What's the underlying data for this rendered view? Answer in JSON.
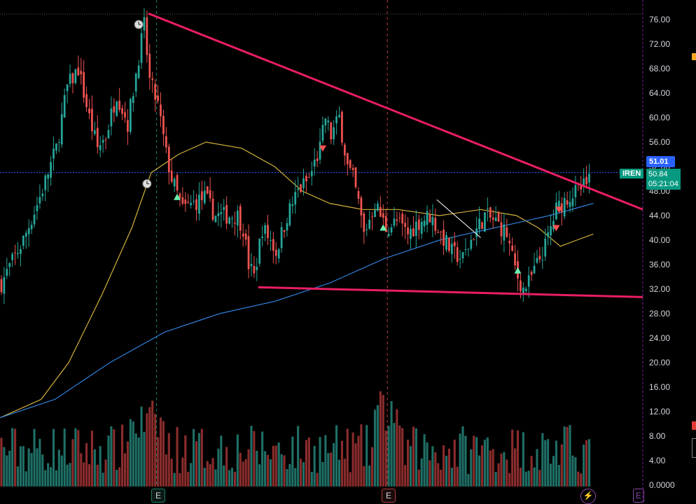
{
  "symbol": "IREN",
  "countdown": "05:21:04",
  "prices": {
    "high_line": "51.01",
    "last": "50.84"
  },
  "colors": {
    "background": "#000000",
    "up": "#26a69a",
    "down": "#ef5350",
    "up_volume": "#1f6f66",
    "down_volume": "#8a2c2c",
    "trendline": "#e91e63",
    "ma_short": "#d4b13a",
    "ma_long": "#2f7ed8",
    "grid_text": "#d1d4dc",
    "high_line_tag": "#2962ff",
    "last_price_tag": "#089981"
  },
  "events": {
    "earnings_label": "E",
    "earnings_icon": "earnings-flag-icon",
    "alarm_icon": "alarm-clock-icon",
    "lightning_icon": "lightning-icon"
  },
  "chart_data": {
    "type": "candlestick",
    "y_ticks": [
      "76.00",
      "72.00",
      "68.00",
      "64.00",
      "60.00",
      "56.00",
      "52.00",
      "48.00",
      "44.00",
      "40.00",
      "36.00",
      "32.00",
      "28.00",
      "24.00",
      "20.00",
      "16.00",
      "12.00",
      "8.00",
      "4.00",
      "0.0000"
    ],
    "ylim": [
      0,
      78
    ],
    "bar_count": 140,
    "close_waypoints": [
      [
        0,
        33
      ],
      [
        8,
        40
      ],
      [
        14,
        47
      ],
      [
        20,
        55
      ],
      [
        24,
        65
      ],
      [
        28,
        68
      ],
      [
        32,
        60
      ],
      [
        35,
        55
      ],
      [
        38,
        57
      ],
      [
        42,
        64
      ],
      [
        46,
        59
      ],
      [
        50,
        70
      ],
      [
        52,
        75
      ],
      [
        54,
        66
      ],
      [
        57,
        62
      ],
      [
        60,
        54
      ],
      [
        62,
        50
      ],
      [
        66,
        45
      ],
      [
        70,
        46
      ],
      [
        74,
        47
      ],
      [
        78,
        44
      ],
      [
        82,
        44
      ],
      [
        86,
        44
      ],
      [
        88,
        42
      ],
      [
        90,
        36
      ],
      [
        92,
        34
      ],
      [
        95,
        42
      ],
      [
        98,
        40
      ],
      [
        100,
        38
      ],
      [
        104,
        44
      ],
      [
        108,
        48
      ],
      [
        112,
        50
      ],
      [
        116,
        55
      ],
      [
        118,
        60
      ],
      [
        120,
        57
      ],
      [
        123,
        60
      ],
      [
        126,
        52
      ],
      [
        128,
        50
      ],
      [
        130,
        46
      ],
      [
        132,
        41
      ],
      [
        136,
        46
      ],
      [
        140,
        42
      ],
      [
        144,
        43
      ],
      [
        148,
        41
      ],
      [
        152,
        43
      ],
      [
        156,
        44
      ],
      [
        160,
        41
      ],
      [
        164,
        38
      ],
      [
        168,
        37
      ],
      [
        172,
        41
      ],
      [
        176,
        44
      ],
      [
        180,
        43
      ],
      [
        184,
        41
      ],
      [
        186,
        37
      ],
      [
        188,
        34
      ],
      [
        190,
        32
      ],
      [
        192,
        33
      ],
      [
        195,
        36
      ],
      [
        198,
        39
      ],
      [
        202,
        45
      ],
      [
        206,
        47
      ],
      [
        210,
        48
      ],
      [
        213,
        49
      ],
      [
        214,
        50.84
      ]
    ],
    "ma_short": [
      [
        0,
        11
      ],
      [
        15,
        14
      ],
      [
        25,
        20
      ],
      [
        37,
        31
      ],
      [
        48,
        42
      ],
      [
        55,
        51
      ],
      [
        65,
        54
      ],
      [
        75,
        56
      ],
      [
        88,
        55
      ],
      [
        100,
        52
      ],
      [
        110,
        48
      ],
      [
        120,
        46
      ],
      [
        132,
        45
      ],
      [
        145,
        45
      ],
      [
        160,
        44
      ],
      [
        175,
        45
      ],
      [
        188,
        44
      ],
      [
        196,
        42
      ],
      [
        204,
        39
      ],
      [
        210,
        40
      ],
      [
        216,
        41
      ]
    ],
    "ma_long": [
      [
        0,
        11
      ],
      [
        20,
        14
      ],
      [
        40,
        20
      ],
      [
        60,
        25
      ],
      [
        80,
        28
      ],
      [
        100,
        30
      ],
      [
        120,
        33
      ],
      [
        140,
        37
      ],
      [
        160,
        40
      ],
      [
        180,
        42
      ],
      [
        200,
        44
      ],
      [
        216,
        46
      ]
    ],
    "trendlines": [
      {
        "from": [
          54,
          77
        ],
        "to": [
          234,
          45
        ]
      },
      {
        "from": [
          94,
          32.3
        ],
        "to": [
          234,
          30.7
        ]
      },
      {
        "from": [
          159,
          46.6
        ],
        "to": [
          175,
          40.4
        ]
      }
    ],
    "x_range": [
      0,
      234
    ],
    "high_line_value": 51.01,
    "last_value": 50.84,
    "event_lines": [
      57,
      141
    ],
    "earnings_marks_x": [
      57,
      141
    ],
    "signal_markers": [
      {
        "x": 64,
        "value": 47,
        "dir": "up"
      },
      {
        "x": 117,
        "value": 55,
        "dir": "down"
      },
      {
        "x": 139,
        "value": 42,
        "dir": "up"
      },
      {
        "x": 188,
        "value": 35,
        "dir": "up"
      },
      {
        "x": 203,
        "value": 45,
        "dir": "down"
      },
      {
        "x": 202,
        "value": 42,
        "dir": "down"
      }
    ],
    "alarms": [
      {
        "x": 50,
        "value": 75.2
      },
      {
        "x": 53,
        "value": 49.2
      }
    ],
    "volume_scale_max": 18,
    "grid": false
  }
}
